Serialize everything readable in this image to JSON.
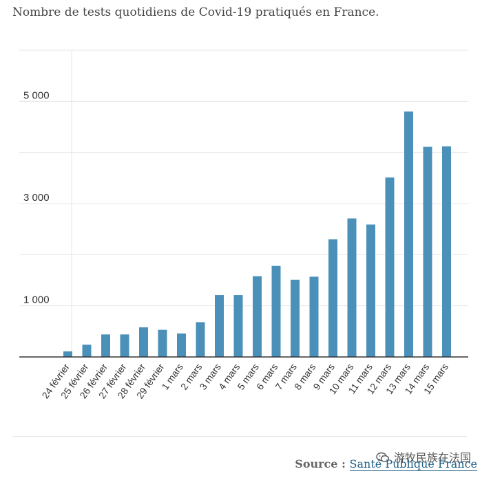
{
  "title": "Nombre de tests quotidiens de Covid-19 pratiqués en France.",
  "source": {
    "label": "Source : ",
    "link_text": "Santé Publique France"
  },
  "watermark": {
    "text": "游牧民族在法国",
    "icon": "wechat-icon"
  },
  "colors": {
    "bar": "#4a90b8",
    "grid": "#e5e5e5",
    "axis": "#333333"
  },
  "chart_data": {
    "type": "bar",
    "title": "Nombre de tests quotidiens de Covid-19 pratiqués en France.",
    "xlabel": "",
    "ylabel": "",
    "ylim": [
      0,
      6000
    ],
    "yticks": [
      0,
      1000,
      2000,
      3000,
      4000,
      5000,
      6000
    ],
    "ytick_labels": [
      "",
      "1 000",
      "",
      "3 000",
      "",
      "5 000",
      ""
    ],
    "grid": true,
    "categories": [
      "24 février",
      "25 février",
      "26 février",
      "27 février",
      "28 février",
      "29 février",
      "1 mars",
      "2 mars",
      "3 mars",
      "4 mars",
      "5 mars",
      "6 mars",
      "7 mars",
      "8 mars",
      "9 mars",
      "10 mars",
      "11 mars",
      "12 mars",
      "13 mars",
      "14 mars",
      "15 mars"
    ],
    "values": [
      110,
      240,
      440,
      440,
      580,
      530,
      460,
      680,
      1210,
      1210,
      1580,
      1780,
      1510,
      1570,
      2300,
      2710,
      2590,
      3510,
      4800,
      4110,
      4120
    ]
  }
}
